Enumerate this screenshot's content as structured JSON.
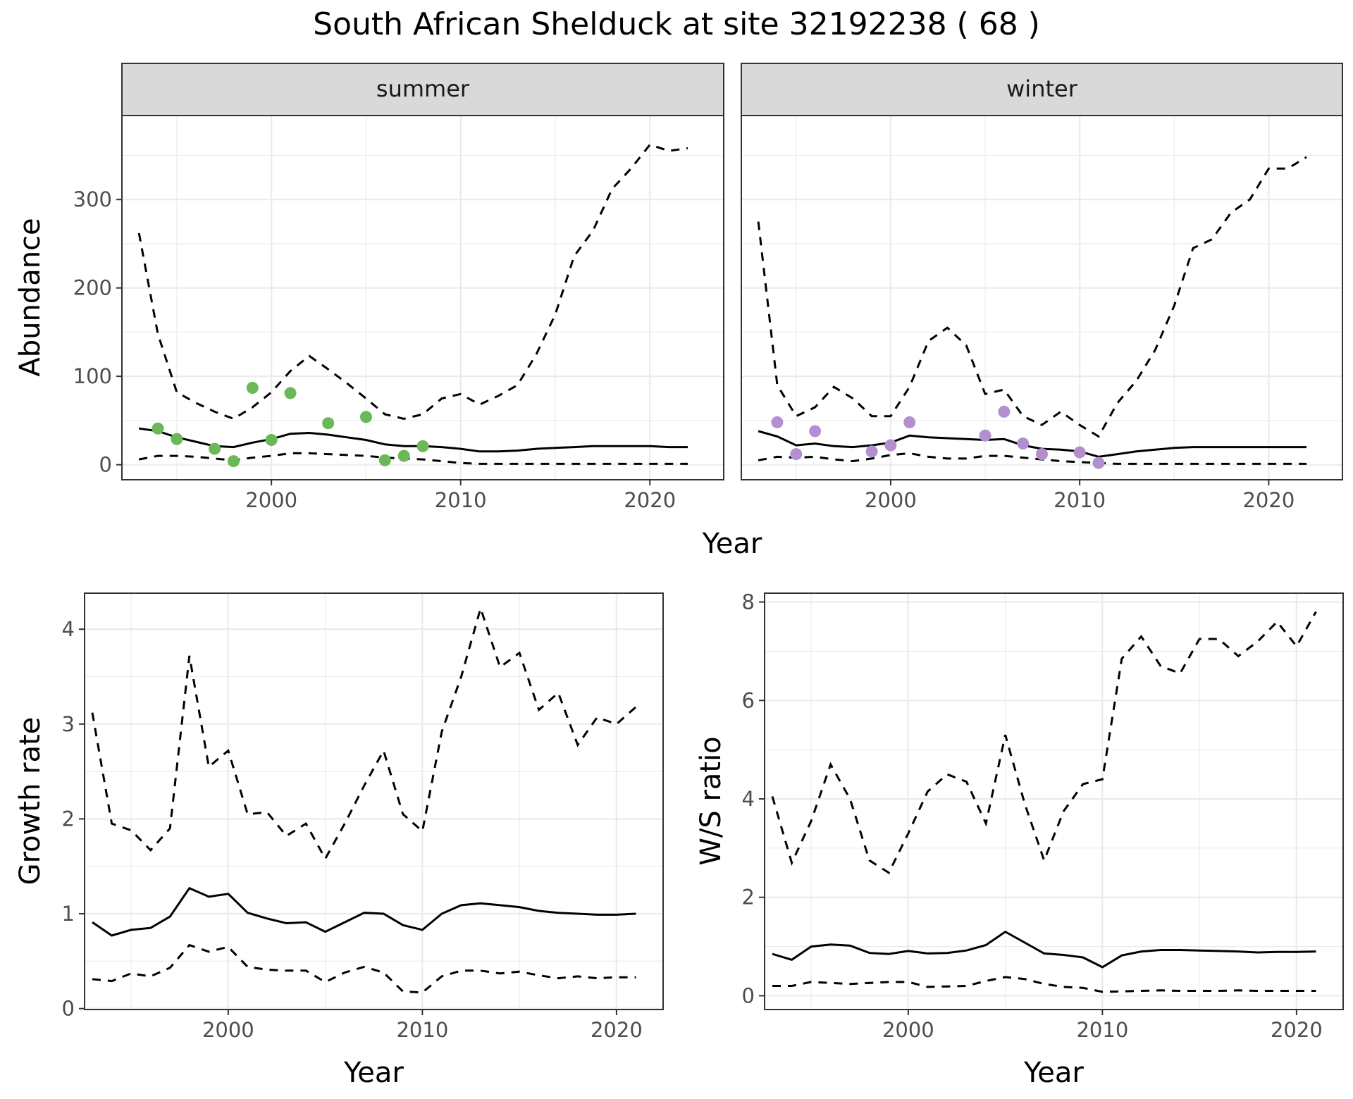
{
  "title": "South African Shelduck at site 32192238 ( 68 )",
  "colors": {
    "summer_points": "#6ab857",
    "winter_points": "#b28fcd"
  },
  "chart_data": [
    {
      "id": "abundance",
      "type": "line",
      "facets": [
        "summer",
        "winter"
      ],
      "xlabel": "Year",
      "ylabel": "Abundance",
      "xlim": [
        1992.1,
        2023.9
      ],
      "ylim": [
        -17,
        395
      ],
      "xticks": [
        2000,
        2010,
        2020
      ],
      "yticks": [
        0,
        100,
        200,
        300
      ],
      "x": [
        1993,
        1994,
        1995,
        1996,
        1997,
        1998,
        1999,
        2000,
        2001,
        2002,
        2003,
        2004,
        2005,
        2006,
        2007,
        2008,
        2009,
        2010,
        2011,
        2012,
        2013,
        2014,
        2015,
        2016,
        2017,
        2018,
        2019,
        2020,
        2021,
        2022
      ],
      "panels": [
        {
          "facet": "summer",
          "series": [
            {
              "role": "mean",
              "values": [
                41,
                38,
                31,
                26,
                21,
                20,
                25,
                29,
                35,
                36,
                34,
                31,
                28,
                23,
                21,
                21,
                20,
                18,
                15,
                15,
                16,
                18,
                19,
                20,
                21,
                21,
                21,
                21,
                20,
                20
              ]
            },
            {
              "role": "upper",
              "values": [
                262,
                148,
                82,
                70,
                60,
                52,
                65,
                82,
                106,
                123,
                108,
                92,
                75,
                57,
                52,
                57,
                75,
                80,
                68,
                78,
                90,
                125,
                170,
                236,
                265,
                312,
                335,
                362,
                355,
                358
              ]
            },
            {
              "role": "lower",
              "values": [
                6,
                10,
                10,
                9,
                7,
                5,
                8,
                10,
                13,
                13,
                12,
                11,
                10,
                8,
                7,
                6,
                4,
                2,
                1,
                1,
                1,
                1,
                1,
                1,
                1,
                1,
                1,
                1,
                1,
                1
              ]
            },
            {
              "role": "counts",
              "x": [
                1994,
                1995,
                1997,
                1998,
                1999,
                2000,
                2001,
                2003,
                2005,
                2006,
                2007,
                2008
              ],
              "values": [
                41,
                29,
                18,
                4,
                87,
                28,
                81,
                47,
                54,
                5,
                10,
                21
              ]
            }
          ]
        },
        {
          "facet": "winter",
          "series": [
            {
              "role": "mean",
              "values": [
                38,
                32,
                22,
                24,
                21,
                20,
                22,
                25,
                33,
                31,
                30,
                29,
                28,
                29,
                22,
                18,
                17,
                15,
                9,
                12,
                15,
                17,
                19,
                20,
                20,
                20,
                20,
                20,
                20,
                20
              ]
            },
            {
              "role": "upper",
              "values": [
                275,
                90,
                55,
                65,
                88,
                75,
                55,
                55,
                88,
                140,
                155,
                135,
                80,
                85,
                55,
                45,
                60,
                45,
                32,
                70,
                95,
                130,
                180,
                245,
                255,
                285,
                300,
                335,
                335,
                348
              ]
            },
            {
              "role": "lower",
              "values": [
                5,
                9,
                8,
                9,
                6,
                4,
                7,
                11,
                13,
                9,
                7,
                7,
                10,
                10,
                8,
                6,
                4,
                3,
                2,
                1,
                1,
                1,
                1,
                1,
                1,
                1,
                1,
                1,
                1,
                1
              ]
            },
            {
              "role": "counts",
              "x": [
                1994,
                1995,
                1996,
                1999,
                2000,
                2001,
                2005,
                2006,
                2007,
                2008,
                2010,
                2011
              ],
              "values": [
                48,
                12,
                38,
                15,
                22,
                48,
                33,
                60,
                24,
                12,
                14,
                2
              ]
            }
          ]
        }
      ]
    },
    {
      "id": "growth",
      "type": "line",
      "xlabel": "Year",
      "ylabel": "Growth rate",
      "xlim": [
        1992.6,
        2022.4
      ],
      "ylim": [
        -0.01,
        4.38
      ],
      "xticks": [
        2000,
        2010,
        2020
      ],
      "yticks": [
        0,
        1,
        2,
        3,
        4
      ],
      "x": [
        1993,
        1994,
        1995,
        1996,
        1997,
        1998,
        1999,
        2000,
        2001,
        2002,
        2003,
        2004,
        2005,
        2006,
        2007,
        2008,
        2009,
        2010,
        2011,
        2012,
        2013,
        2014,
        2015,
        2016,
        2017,
        2018,
        2019,
        2020,
        2021
      ],
      "series": [
        {
          "role": "mean",
          "values": [
            0.91,
            0.77,
            0.83,
            0.85,
            0.97,
            1.27,
            1.18,
            1.21,
            1.01,
            0.95,
            0.9,
            0.91,
            0.81,
            0.91,
            1.01,
            1.0,
            0.88,
            0.83,
            1.0,
            1.09,
            1.11,
            1.09,
            1.07,
            1.03,
            1.01,
            1.0,
            0.99,
            0.99,
            1.0
          ]
        },
        {
          "role": "upper",
          "values": [
            3.12,
            1.95,
            1.88,
            1.67,
            1.9,
            3.72,
            2.55,
            2.72,
            2.05,
            2.07,
            1.82,
            1.95,
            1.58,
            1.95,
            2.35,
            2.72,
            2.05,
            1.87,
            2.92,
            3.5,
            4.22,
            3.6,
            3.75,
            3.15,
            3.33,
            2.78,
            3.07,
            3.0,
            3.18
          ]
        },
        {
          "role": "lower",
          "values": [
            0.31,
            0.29,
            0.37,
            0.34,
            0.43,
            0.67,
            0.6,
            0.65,
            0.44,
            0.41,
            0.4,
            0.4,
            0.28,
            0.38,
            0.44,
            0.38,
            0.18,
            0.17,
            0.34,
            0.4,
            0.4,
            0.37,
            0.39,
            0.35,
            0.32,
            0.34,
            0.32,
            0.33,
            0.33
          ]
        }
      ]
    },
    {
      "id": "ws_ratio",
      "type": "line",
      "xlabel": "Year",
      "ylabel": "W/S ratio",
      "xlim": [
        1992.6,
        2022.4
      ],
      "ylim": [
        -0.28,
        8.18
      ],
      "xticks": [
        2000,
        2010,
        2020
      ],
      "yticks": [
        0,
        2,
        4,
        6,
        8
      ],
      "x": [
        1993,
        1994,
        1995,
        1996,
        1997,
        1998,
        1999,
        2000,
        2001,
        2002,
        2003,
        2004,
        2005,
        2006,
        2007,
        2008,
        2009,
        2010,
        2011,
        2012,
        2013,
        2014,
        2015,
        2016,
        2017,
        2018,
        2019,
        2020,
        2021
      ],
      "series": [
        {
          "role": "mean",
          "values": [
            0.85,
            0.73,
            1.0,
            1.04,
            1.02,
            0.87,
            0.85,
            0.91,
            0.86,
            0.87,
            0.92,
            1.03,
            1.3,
            1.08,
            0.86,
            0.83,
            0.78,
            0.58,
            0.82,
            0.9,
            0.93,
            0.93,
            0.92,
            0.91,
            0.9,
            0.88,
            0.89,
            0.89,
            0.9
          ]
        },
        {
          "role": "upper",
          "values": [
            4.05,
            2.7,
            3.55,
            4.7,
            4.0,
            2.75,
            2.5,
            3.3,
            4.15,
            4.5,
            4.35,
            3.5,
            5.3,
            3.9,
            2.75,
            3.75,
            4.3,
            4.4,
            6.85,
            7.3,
            6.7,
            6.55,
            7.25,
            7.25,
            6.9,
            7.2,
            7.6,
            7.1,
            7.8
          ]
        },
        {
          "role": "lower",
          "values": [
            0.2,
            0.2,
            0.28,
            0.26,
            0.24,
            0.26,
            0.28,
            0.28,
            0.18,
            0.19,
            0.2,
            0.3,
            0.38,
            0.34,
            0.24,
            0.18,
            0.16,
            0.08,
            0.09,
            0.1,
            0.11,
            0.1,
            0.1,
            0.1,
            0.11,
            0.1,
            0.1,
            0.1,
            0.1
          ]
        }
      ]
    }
  ]
}
